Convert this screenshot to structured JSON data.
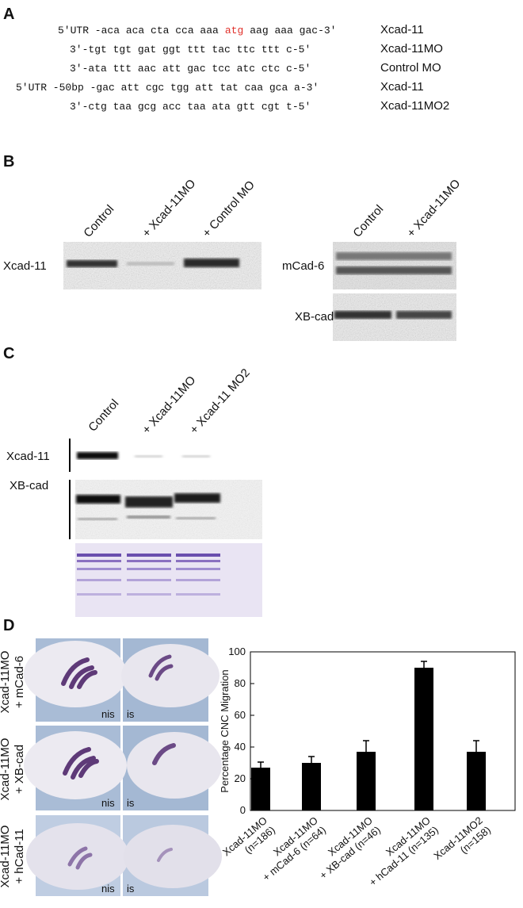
{
  "panels": {
    "a": {
      "letter": "A",
      "rows": [
        {
          "before": "5'UTR -aca aca cta cca aaa",
          "highlight": "atg",
          "after": "aag aaa gac-3'",
          "label": "Xcad-11"
        },
        {
          "sequence": "3'-tgt tgt gat ggt ttt tac ttc ttt c-5'",
          "label": "Xcad-11MO"
        },
        {
          "sequence": "3'-ata ttt aac att gac tcc atc ctc c-5'",
          "label": "Control MO"
        },
        {
          "sequence": "5'UTR -50bp -gac att cgc tgg att tat caa gca a-3'",
          "label": "Xcad-11"
        },
        {
          "sequence": "3'-ctg taa gcg acc taa ata gtt cgt t-5'",
          "label": "Xcad-11MO2"
        }
      ]
    },
    "b": {
      "letter": "B",
      "left": {
        "lanes": [
          "Control",
          "+ Xcad-11MO",
          "+ Control MO"
        ],
        "rows": [
          "Xcad-11"
        ]
      },
      "right": {
        "lanes": [
          "Control",
          "+ Xcad-11MO"
        ],
        "rows": [
          "mCad-6",
          "XB-cad"
        ]
      }
    },
    "c": {
      "letter": "C",
      "lanes": [
        "Control",
        "+ Xcad-11MO",
        "+ Xcad-11 MO2"
      ],
      "rows": [
        "Xcad-11",
        "XB-cad"
      ]
    },
    "d": {
      "letter": "D",
      "images": [
        {
          "label": "Xcad-11MO\n+ mCad-6",
          "left": "nis",
          "right": "is"
        },
        {
          "label": "Xcad-11MO\n+ XB-cad",
          "left": "nis",
          "right": "is"
        },
        {
          "label": "Xcad-11MO\n+ hCad-11",
          "left": "nis",
          "right": "is"
        }
      ]
    }
  },
  "chart_data": {
    "type": "bar",
    "y_label": "Percentage CNC Migration",
    "categories": [
      "Xcad-11MO\n(n=186)",
      "Xcad-11MO\n+ mCad-6 (n=64)",
      "Xcad-11MO\n+ XB-cad (n=46)",
      "Xcad-11MO\n+ hCad-11 (n=135)",
      "Xcad-11MO2\n(n=158)"
    ],
    "values": [
      27,
      30,
      37,
      90,
      37
    ],
    "errors": [
      3.5,
      4,
      7,
      4,
      7
    ],
    "color": "#000000",
    "ylim": [
      0,
      100
    ],
    "yticks": [
      0,
      20,
      40,
      60,
      80,
      100
    ],
    "grid": false
  }
}
